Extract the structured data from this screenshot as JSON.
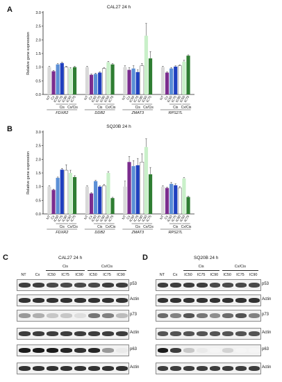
{
  "charts": [
    {
      "panel": "A",
      "title": "CAL27 24 h",
      "ylabel": "Relative gene expression",
      "yticks": [
        "0.0",
        "0.5",
        "1.0",
        "1.5",
        "2.0",
        "2.5",
        "3.0"
      ],
      "ylim": [
        0,
        3.0
      ],
      "bar_labels": [
        "NT",
        "Cx",
        "IC50",
        "IC75",
        "IC90",
        "IC50",
        "IC75"
      ],
      "group_labels": [
        "Cis",
        "Cx/Cis"
      ],
      "genes": [
        "FDXR2",
        "DDB2",
        "ZMAT3",
        "RPS27L"
      ],
      "colors": [
        "#d9d9d9",
        "#7b2d8e",
        "#5b8fd6",
        "#1f3fbf",
        "#ffffff",
        "#c9f0c9",
        "#2e7d32"
      ]
    },
    {
      "panel": "B",
      "title": "SQ20B 24 h",
      "ylabel": "Relative gene expression",
      "yticks": [
        "0.0",
        "0.5",
        "1.0",
        "1.5",
        "2.0",
        "2.5",
        "3.0"
      ],
      "ylim": [
        0,
        3.0
      ],
      "bar_labels": [
        "NT",
        "Cx",
        "IC50",
        "IC75",
        "IC90",
        "IC50",
        "IC75"
      ],
      "group_labels": [
        "Cis",
        "Cx/Cis"
      ],
      "genes": [
        "FDXR2",
        "DDB2",
        "ZMAT3",
        "RPS27L"
      ],
      "colors": [
        "#d9d9d9",
        "#7b2d8e",
        "#5b8fd6",
        "#1f3fbf",
        "#ffffff",
        "#c9f0c9",
        "#2e7d32"
      ]
    }
  ],
  "chart_data": [
    {
      "type": "bar",
      "title": "CAL27 24 h",
      "ylabel": "Relative gene expression",
      "ylim": [
        0,
        3.0
      ],
      "categories": [
        "FDXR2",
        "DDB2",
        "ZMAT3",
        "RPS27L"
      ],
      "series": [
        {
          "values": [
            1.0,
            1.0,
            1.0,
            1.0
          ]
        },
        {
          "values": [
            0.85,
            0.72,
            0.9,
            0.8
          ]
        },
        {
          "values": [
            1.1,
            0.75,
            0.95,
            0.95
          ]
        },
        {
          "values": [
            1.15,
            0.8,
            0.82,
            1.02
          ]
        },
        {
          "values": [
            1.0,
            0.95,
            1.05,
            1.05
          ]
        },
        {
          "values": [
            0.95,
            1.18,
            2.15,
            1.2
          ]
        },
        {
          "values": [
            1.0,
            1.1,
            1.32,
            1.42
          ]
        }
      ],
      "errors": [
        [
          0.03,
          0.03,
          0.05,
          0.03
        ],
        [
          0.03,
          0.03,
          0.08,
          0.03
        ],
        [
          0.03,
          0.03,
          0.1,
          0.03
        ],
        [
          0.03,
          0.03,
          0.08,
          0.03
        ],
        [
          0.03,
          0.03,
          0.08,
          0.03
        ],
        [
          0.03,
          0.03,
          0.45,
          0.05
        ],
        [
          0.03,
          0.03,
          0.25,
          0.03
        ]
      ]
    },
    {
      "type": "bar",
      "title": "SQ20B 24 h",
      "ylabel": "Relative gene expression",
      "ylim": [
        0,
        3.0
      ],
      "categories": [
        "FDXR2",
        "DDB2",
        "ZMAT3",
        "RPS27L"
      ],
      "series": [
        {
          "values": [
            1.0,
            1.0,
            1.0,
            1.0
          ]
        },
        {
          "values": [
            0.88,
            0.75,
            1.9,
            0.95
          ]
        },
        {
          "values": [
            1.32,
            1.2,
            1.75,
            1.1
          ]
        },
        {
          "values": [
            1.62,
            1.0,
            1.78,
            1.05
          ]
        },
        {
          "values": [
            1.6,
            1.03,
            1.9,
            0.95
          ]
        },
        {
          "values": [
            1.5,
            1.5,
            2.45,
            1.3
          ]
        },
        {
          "values": [
            1.35,
            0.58,
            1.45,
            0.62
          ]
        }
      ],
      "errors": [
        [
          0.03,
          0.03,
          0.2,
          0.03
        ],
        [
          0.03,
          0.03,
          0.2,
          0.03
        ],
        [
          0.03,
          0.03,
          0.2,
          0.05
        ],
        [
          0.05,
          0.03,
          0.25,
          0.05
        ],
        [
          0.2,
          0.05,
          0.3,
          0.05
        ],
        [
          0.1,
          0.05,
          0.3,
          0.03
        ],
        [
          0.05,
          0.03,
          0.25,
          0.03
        ]
      ]
    }
  ],
  "blots": [
    {
      "panel": "C",
      "title": "CAL27 24 h",
      "lanes": [
        "NT",
        "Cx",
        "IC50",
        "IC75",
        "IC90",
        "IC50",
        "IC75",
        "IC90"
      ],
      "groups": [
        "Cis",
        "Cx/Cis"
      ],
      "rows": [
        {
          "label": "p53",
          "intensity": [
            0.8,
            0.8,
            0.75,
            0.75,
            0.75,
            0.75,
            0.8,
            0.8
          ]
        },
        {
          "label": "Actin",
          "intensity": [
            0.85,
            0.85,
            0.85,
            0.85,
            0.85,
            0.85,
            0.85,
            0.85
          ]
        },
        {
          "label": "p73",
          "intensity": [
            0.4,
            0.3,
            0.2,
            0.2,
            0.1,
            0.55,
            0.5,
            0.25
          ]
        },
        {
          "label": "Actin",
          "intensity": [
            0.8,
            0.8,
            0.8,
            0.8,
            0.8,
            0.8,
            0.8,
            0.8
          ]
        },
        {
          "label": "p63",
          "intensity": [
            0.95,
            0.95,
            0.95,
            0.9,
            0.85,
            0.9,
            0.4,
            0.05
          ]
        },
        {
          "label": "Actin",
          "intensity": [
            0.85,
            0.85,
            0.85,
            0.85,
            0.85,
            0.85,
            0.85,
            0.85
          ]
        }
      ]
    },
    {
      "panel": "D",
      "title": "SQ20B 24 h",
      "lanes": [
        "NT",
        "Cx",
        "IC50",
        "IC75",
        "IC90",
        "IC50",
        "IC75",
        "IC90"
      ],
      "groups": [
        "Cis",
        "Cx/Cis"
      ],
      "rows": [
        {
          "label": "p53",
          "intensity": [
            0.8,
            0.8,
            0.8,
            0.8,
            0.75,
            0.75,
            0.75,
            0.75
          ]
        },
        {
          "label": "Actin",
          "intensity": [
            0.85,
            0.85,
            0.85,
            0.85,
            0.85,
            0.85,
            0.85,
            0.85
          ]
        },
        {
          "label": "p73",
          "intensity": [
            0.6,
            0.5,
            0.7,
            0.55,
            0.45,
            0.6,
            0.7,
            0.5
          ]
        },
        {
          "label": "Actin",
          "intensity": [
            0.7,
            0.7,
            0.7,
            0.7,
            0.7,
            0.7,
            0.7,
            0.7
          ]
        },
        {
          "label": "p63",
          "intensity": [
            0.95,
            0.8,
            0.2,
            0.05,
            0.0,
            0.15,
            0.0,
            0.0
          ]
        },
        {
          "label": "Actin",
          "intensity": [
            0.8,
            0.8,
            0.8,
            0.8,
            0.8,
            0.8,
            0.8,
            0.8
          ]
        }
      ]
    }
  ]
}
